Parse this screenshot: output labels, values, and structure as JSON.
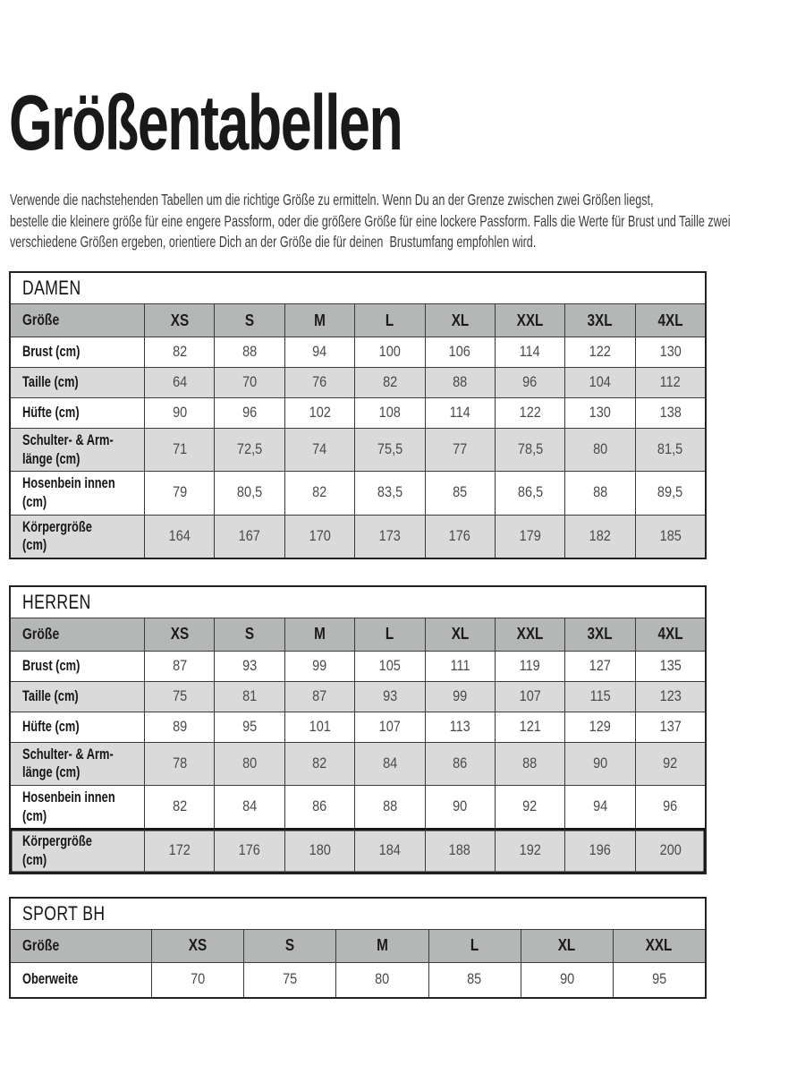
{
  "document": {
    "title": "Größentabellen",
    "intro_lines": [
      "Verwende die nachstehenden Tabellen um die richtige Größe zu ermitteln. Wenn Du an der Grenze zwischen zwei Größen liegst,",
      "bestelle die kleinere größe für eine engere Passform, oder die größere Größe für eine lockere Passform. Falls die Werte für Brust und Taille zwei",
      "verschiedene Größen ergeben, orientiere Dich an der Größe die für deinen  Brustumfang empfohlen wird."
    ]
  },
  "colors": {
    "header_gray": "#b5b7b6",
    "row_gray": "#d9dad9",
    "border": "#222222",
    "grid-line": "#3a3a3a"
  },
  "tables": [
    {
      "id": "damen",
      "heading": "DAMEN",
      "size_label": "Größe",
      "sizes": [
        "XS",
        "S",
        "M",
        "L",
        "XL",
        "XXL",
        "3XL",
        "4XL"
      ],
      "rows": [
        {
          "label": "Brust (cm)",
          "values": [
            "82",
            "88",
            "94",
            "100",
            "106",
            "114",
            "122",
            "130"
          ]
        },
        {
          "label": "Taille (cm)",
          "values": [
            "64",
            "70",
            "76",
            "82",
            "88",
            "96",
            "104",
            "112"
          ]
        },
        {
          "label": "Hüfte (cm)",
          "values": [
            "90",
            "96",
            "102",
            "108",
            "114",
            "122",
            "130",
            "138"
          ]
        },
        {
          "label": "Schulter- & Arm-\nlänge (cm)",
          "values": [
            "71",
            "72,5",
            "74",
            "75,5",
            "77",
            "78,5",
            "80",
            "81,5"
          ]
        },
        {
          "label": "Hosenbein innen (cm)",
          "values": [
            "79",
            "80,5",
            "82",
            "83,5",
            "85",
            "86,5",
            "88",
            "89,5"
          ]
        },
        {
          "label": "Körpergröße (cm)",
          "values": [
            "164",
            "167",
            "170",
            "173",
            "176",
            "179",
            "182",
            "185"
          ]
        }
      ]
    },
    {
      "id": "herren",
      "heading": "HERREN",
      "size_label": "Größe",
      "sizes": [
        "XS",
        "S",
        "M",
        "L",
        "XL",
        "XXL",
        "3XL",
        "4XL"
      ],
      "rows": [
        {
          "label": "Brust (cm)",
          "values": [
            "87",
            "93",
            "99",
            "105",
            "111",
            "119",
            "127",
            "135"
          ]
        },
        {
          "label": "Taille (cm)",
          "values": [
            "75",
            "81",
            "87",
            "93",
            "99",
            "107",
            "115",
            "123"
          ]
        },
        {
          "label": "Hüfte (cm)",
          "values": [
            "89",
            "95",
            "101",
            "107",
            "113",
            "121",
            "129",
            "137"
          ]
        },
        {
          "label": "Schulter- & Arm-\nlänge (cm)",
          "values": [
            "78",
            "80",
            "82",
            "84",
            "86",
            "88",
            "90",
            "92"
          ]
        },
        {
          "label": "Hosenbein innen (cm)",
          "values": [
            "82",
            "84",
            "86",
            "88",
            "90",
            "92",
            "94",
            "96"
          ]
        },
        {
          "label": "Körpergröße (cm)",
          "values": [
            "172",
            "176",
            "180",
            "184",
            "188",
            "192",
            "196",
            "200"
          ],
          "highlight": true
        }
      ]
    },
    {
      "id": "sport-bh",
      "heading": "SPORT BH",
      "size_label": "Größe",
      "sizes": [
        "XS",
        "S",
        "M",
        "L",
        "XL",
        "XXL"
      ],
      "rows": [
        {
          "label": "Oberweite",
          "values": [
            "70",
            "75",
            "80",
            "85",
            "90",
            "95"
          ]
        }
      ]
    }
  ]
}
